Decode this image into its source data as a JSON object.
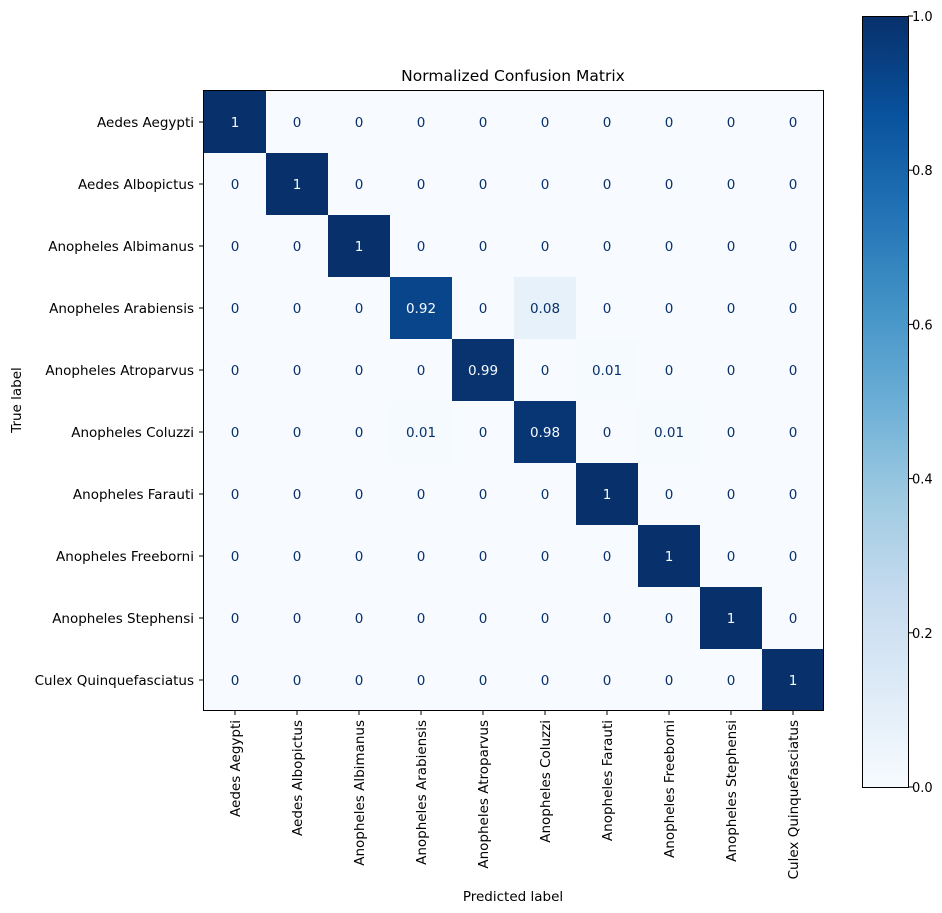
{
  "chart_data": {
    "type": "heatmap",
    "title": "Normalized Confusion Matrix",
    "xlabel": "Predicted label",
    "ylabel": "True label",
    "x_categories": [
      "Aedes Aegypti",
      "Aedes Albopictus",
      "Anopheles Albimanus",
      "Anopheles Arabiensis",
      "Anopheles Atroparvus",
      "Anopheles Coluzzi",
      "Anopheles Farauti",
      "Anopheles Freeborni",
      "Anopheles Stephensi",
      "Culex Quinquefasciatus"
    ],
    "y_categories": [
      "Aedes Aegypti",
      "Aedes Albopictus",
      "Anopheles Albimanus",
      "Anopheles Arabiensis",
      "Anopheles Atroparvus",
      "Anopheles Coluzzi",
      "Anopheles Farauti",
      "Anopheles Freeborni",
      "Anopheles Stephensi",
      "Culex Quinquefasciatus"
    ],
    "values": [
      [
        1,
        0,
        0,
        0,
        0,
        0,
        0,
        0,
        0,
        0
      ],
      [
        0,
        1,
        0,
        0,
        0,
        0,
        0,
        0,
        0,
        0
      ],
      [
        0,
        0,
        1,
        0,
        0,
        0,
        0,
        0,
        0,
        0
      ],
      [
        0,
        0,
        0,
        0.92,
        0,
        0.08,
        0,
        0,
        0,
        0
      ],
      [
        0,
        0,
        0,
        0,
        0.99,
        0,
        0.01,
        0,
        0,
        0
      ],
      [
        0,
        0,
        0,
        0.01,
        0,
        0.98,
        0,
        0.01,
        0,
        0
      ],
      [
        0,
        0,
        0,
        0,
        0,
        0,
        1,
        0,
        0,
        0
      ],
      [
        0,
        0,
        0,
        0,
        0,
        0,
        0,
        1,
        0,
        0
      ],
      [
        0,
        0,
        0,
        0,
        0,
        0,
        0,
        0,
        1,
        0
      ],
      [
        0,
        0,
        0,
        0,
        0,
        0,
        0,
        0,
        0,
        1
      ]
    ],
    "colormap": "Blues",
    "colorbar": {
      "range": [
        0.0,
        1.0
      ],
      "ticks": [
        0.0,
        0.2,
        0.4,
        0.6,
        0.8,
        1.0
      ],
      "tick_labels": [
        "0.0",
        "0.2",
        "0.4",
        "0.6",
        "0.8",
        "1.0"
      ]
    },
    "colors": {
      "low": "#f7fbff",
      "high": "#08306b",
      "text_light": "#f7fbff",
      "text_dark": "#08306b"
    }
  }
}
